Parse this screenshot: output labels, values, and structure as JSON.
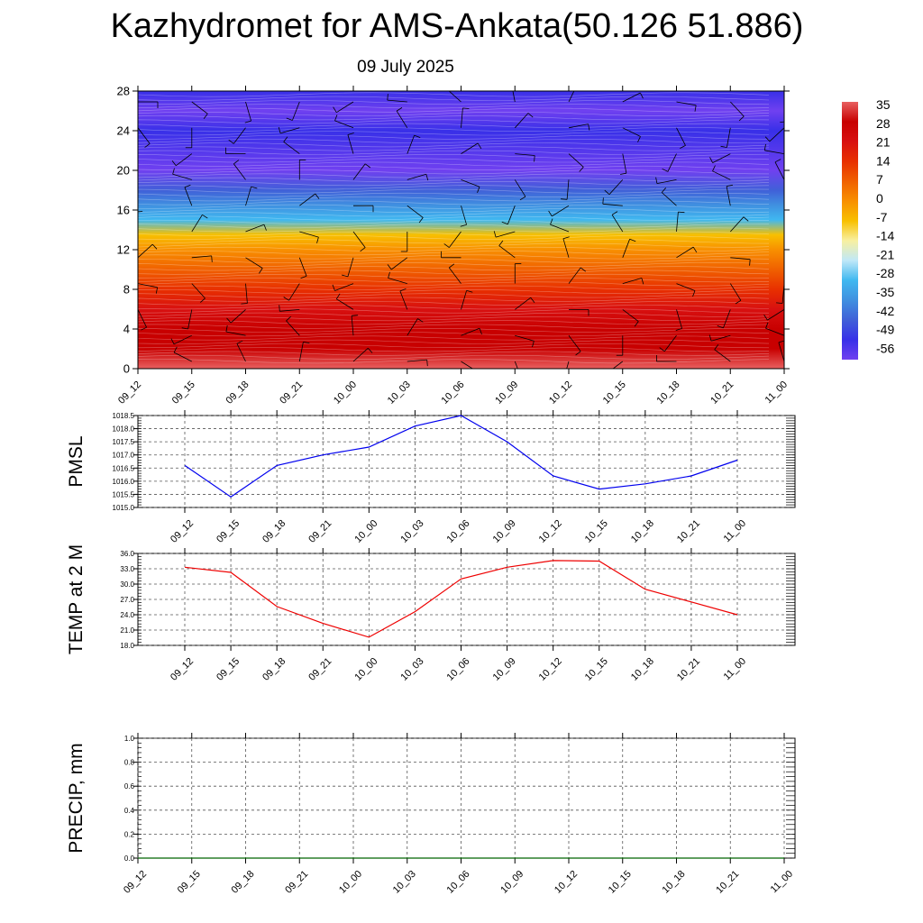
{
  "title": "Kazhydromet for AMS-Ankata(50.126 51.886)",
  "subtitle": "09 July 2025",
  "chart_data": [
    {
      "type": "heatmap",
      "y_range": [
        0,
        28
      ],
      "y_ticks": [
        "0",
        "4",
        "8",
        "12",
        "16",
        "20",
        "24",
        "28"
      ],
      "x_ticks": [
        "09_12",
        "09_15",
        "09_18",
        "09_21",
        "10_00",
        "10_03",
        "10_06",
        "10_09",
        "10_12",
        "10_15",
        "10_18",
        "10_21",
        "11_00"
      ],
      "colorbar_labels": [
        "35",
        "28",
        "21",
        "14",
        "7",
        "0",
        "-7",
        "-14",
        "-21",
        "-28",
        "-35",
        "-42",
        "-49",
        "-56"
      ],
      "colorbar_colors": [
        "#e86060",
        "#c80000",
        "#d81010",
        "#e83000",
        "#f06000",
        "#f89000",
        "#f8c000",
        "#f8f0a0",
        "#c0e8f8",
        "#40b8f0",
        "#4090e0",
        "#4060d8",
        "#3830e8",
        "#7040f0"
      ],
      "temperature_profile": [
        {
          "y": 0,
          "v": 33
        },
        {
          "y": 2,
          "v": 30
        },
        {
          "y": 4,
          "v": 25
        },
        {
          "y": 6,
          "v": 20
        },
        {
          "y": 8,
          "v": 15
        },
        {
          "y": 10,
          "v": 8
        },
        {
          "y": 12,
          "v": 1
        },
        {
          "y": 13.5,
          "v": -10
        },
        {
          "y": 15,
          "v": -25
        },
        {
          "y": 16.5,
          "v": -35
        },
        {
          "y": 18,
          "v": -45
        },
        {
          "y": 20,
          "v": -56
        },
        {
          "y": 24,
          "v": -52
        },
        {
          "y": 26,
          "v": -56
        },
        {
          "y": 28,
          "v": -52
        }
      ]
    },
    {
      "type": "line",
      "ylabel": "PMSL",
      "ylim": [
        1015.0,
        1018.5
      ],
      "y_ticks": [
        "1015.0",
        "1015.5",
        "1016.0",
        "1016.5",
        "1017.0",
        "1017.5",
        "1018.0",
        "1018.5"
      ],
      "x": [
        "09_12",
        "09_15",
        "09_18",
        "09_21",
        "10_00",
        "10_03",
        "10_06",
        "10_09",
        "10_12",
        "10_15",
        "10_18",
        "10_21",
        "11_00"
      ],
      "values": [
        1016.6,
        1015.4,
        1016.6,
        1017.0,
        1017.3,
        1018.1,
        1018.5,
        1017.5,
        1016.2,
        1015.7,
        1015.9,
        1016.2,
        1016.8
      ],
      "color": "#0000ee"
    },
    {
      "type": "line",
      "ylabel": "TEMP at 2 M",
      "ylim": [
        18.0,
        36.0
      ],
      "y_ticks": [
        "18.0",
        "21.0",
        "24.0",
        "27.0",
        "30.0",
        "33.0",
        "36.0"
      ],
      "x": [
        "09_12",
        "09_15",
        "09_18",
        "09_21",
        "10_00",
        "10_03",
        "10_06",
        "10_09",
        "10_12",
        "10_15",
        "10_18",
        "10_21",
        "11_00"
      ],
      "values": [
        33.3,
        32.3,
        25.6,
        22.3,
        19.6,
        24.6,
        31.0,
        33.3,
        34.6,
        34.5,
        29.0,
        26.5,
        24.0
      ],
      "color": "#ee0000"
    },
    {
      "type": "line",
      "ylabel": "PRECIP, mm",
      "ylim": [
        0.0,
        1.0
      ],
      "y_ticks": [
        "0.0",
        "0.2",
        "0.4",
        "0.6",
        "0.8",
        "1.0"
      ],
      "x_ticks": [
        "09_12",
        "09_15",
        "09_18",
        "09_21",
        "10_00",
        "10_03",
        "10_06",
        "10_09",
        "10_12",
        "10_15",
        "10_18",
        "10_21",
        "11_00"
      ],
      "values": [
        0,
        0,
        0,
        0,
        0,
        0,
        0,
        0,
        0,
        0,
        0,
        0,
        0
      ],
      "color": "#006400"
    }
  ]
}
